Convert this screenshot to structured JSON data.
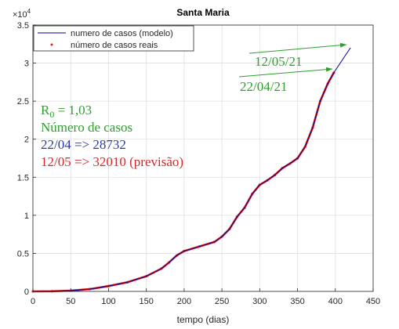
{
  "chart_data": {
    "type": "line",
    "title": "Santa Maria",
    "x_label": "tempo (dias)",
    "y_multiplier": {
      "base": "×10",
      "exponent": "4"
    },
    "xlim": [
      0,
      450
    ],
    "xticks": [
      0,
      50,
      100,
      150,
      200,
      250,
      300,
      350,
      400,
      450
    ],
    "ylim": [
      0,
      35000
    ],
    "yticks": [
      0,
      {
        "value": 5000,
        "label": "0.5"
      },
      {
        "value": 10000,
        "label": "1"
      },
      {
        "value": 15000,
        "label": "1.5"
      },
      {
        "value": 20000,
        "label": "2"
      },
      {
        "value": 25000,
        "label": "2.5"
      },
      {
        "value": 30000,
        "label": "3"
      },
      {
        "value": 35000,
        "label": "3.5"
      }
    ],
    "grid": true,
    "legend_position": "upper-left",
    "series": [
      {
        "name": "numero de casos (modelo)",
        "color": "#00008b",
        "x": [
          0,
          25,
          50,
          75,
          100,
          125,
          150,
          170,
          180,
          190,
          200,
          220,
          240,
          250,
          260,
          270,
          280,
          290,
          300,
          310,
          320,
          330,
          340,
          350,
          360,
          370,
          380,
          390,
          398,
          420
        ],
        "values": [
          0,
          20,
          100,
          300,
          700,
          1200,
          2000,
          3000,
          3800,
          4700,
          5300,
          5900,
          6500,
          7200,
          8200,
          9800,
          11000,
          12800,
          14000,
          14600,
          15300,
          16200,
          16800,
          17500,
          19000,
          21500,
          25000,
          27300,
          28732,
          32010
        ]
      },
      {
        "name": "número de casos reais",
        "color": "#e41a1c",
        "x": [
          0,
          25,
          50,
          75,
          100,
          125,
          150,
          170,
          180,
          190,
          200,
          220,
          240,
          250,
          260,
          270,
          280,
          290,
          300,
          310,
          320,
          330,
          340,
          350,
          360,
          370,
          380,
          390,
          398
        ],
        "values": [
          0,
          20,
          100,
          300,
          700,
          1200,
          2000,
          3000,
          3800,
          4700,
          5300,
          5900,
          6500,
          7200,
          8200,
          9800,
          11000,
          12800,
          14000,
          14600,
          15300,
          16200,
          16800,
          17500,
          19000,
          21500,
          25000,
          27300,
          28732
        ]
      }
    ],
    "annotations": {
      "date_forecast": "12/05/21",
      "date_last": "22/04/21",
      "r0_symbol": "R",
      "r0_subscript": "0",
      "r0_value": " = 1,03",
      "cases_heading": "Número de casos",
      "cases_last": "22/04 => 28732",
      "cases_forecast": "12/05 => 32010 (previsão)"
    }
  }
}
